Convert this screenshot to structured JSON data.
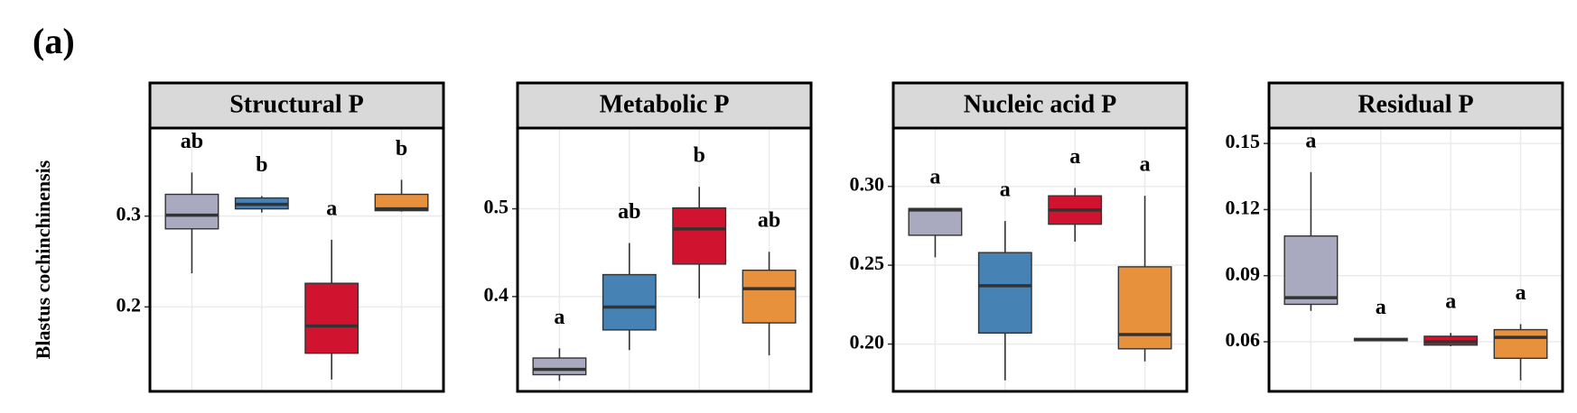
{
  "panel_label": "(a)",
  "y_label": "Blastus cochinchinensis",
  "chart_data": [
    {
      "type": "box",
      "title": "Structural P",
      "categories": [
        null,
        null,
        null,
        null
      ],
      "colors": [
        "#a9aabf",
        "#4682b4",
        "#d0142f",
        "#e8913d"
      ],
      "boxes": [
        {
          "low": 0.237,
          "q1": 0.286,
          "median": 0.301,
          "q3": 0.324,
          "high": 0.348
        },
        {
          "low": 0.304,
          "q1": 0.308,
          "median": 0.313,
          "q3": 0.32,
          "high": 0.322
        },
        {
          "low": 0.12,
          "q1": 0.149,
          "median": 0.179,
          "q3": 0.226,
          "high": 0.274
        },
        {
          "low": 0.305,
          "q1": 0.306,
          "median": 0.308,
          "q3": 0.324,
          "high": 0.34
        }
      ],
      "annotations": [
        "ab",
        "b",
        "a",
        "b"
      ],
      "ylim": [
        0.107,
        0.397
      ],
      "yticks": [
        0.2,
        0.3
      ],
      "grid": true
    },
    {
      "type": "box",
      "title": "Metabolic P",
      "categories": [
        null,
        null,
        null,
        null
      ],
      "colors": [
        "#a9aabf",
        "#4682b4",
        "#d0142f",
        "#e8913d"
      ],
      "boxes": [
        {
          "low": 0.304,
          "q1": 0.311,
          "median": 0.317,
          "q3": 0.33,
          "high": 0.341
        },
        {
          "low": 0.339,
          "q1": 0.362,
          "median": 0.388,
          "q3": 0.425,
          "high": 0.461
        },
        {
          "low": 0.398,
          "q1": 0.437,
          "median": 0.477,
          "q3": 0.501,
          "high": 0.525
        },
        {
          "low": 0.333,
          "q1": 0.37,
          "median": 0.409,
          "q3": 0.43,
          "high": 0.451
        }
      ],
      "annotations": [
        "a",
        "ab",
        "b",
        "ab"
      ],
      "ylim": [
        0.292,
        0.592
      ],
      "yticks": [
        0.4,
        0.5
      ],
      "grid": true
    },
    {
      "type": "box",
      "title": "Nucleic acid P",
      "categories": [
        null,
        null,
        null,
        null
      ],
      "colors": [
        "#a9aabf",
        "#4682b4",
        "#d0142f",
        "#e8913d"
      ],
      "boxes": [
        {
          "low": 0.255,
          "q1": 0.269,
          "median": 0.285,
          "q3": 0.286,
          "high": 0.286
        },
        {
          "low": 0.177,
          "q1": 0.207,
          "median": 0.237,
          "q3": 0.258,
          "high": 0.278
        },
        {
          "low": 0.265,
          "q1": 0.276,
          "median": 0.285,
          "q3": 0.294,
          "high": 0.299
        },
        {
          "low": 0.189,
          "q1": 0.197,
          "median": 0.206,
          "q3": 0.249,
          "high": 0.294
        }
      ],
      "annotations": [
        "a",
        "a",
        "a",
        "a"
      ],
      "ylim": [
        0.17,
        0.337
      ],
      "yticks": [
        {
          "value": 0.2,
          "label": "0.20"
        },
        0.25,
        {
          "value": 0.3,
          "label": "0.30"
        }
      ],
      "grid": true
    },
    {
      "type": "box",
      "title": "Residual P",
      "categories": [
        null,
        null,
        null,
        null
      ],
      "colors": [
        "#a9aabf",
        "#4682b4",
        "#d0142f",
        "#e8913d"
      ],
      "boxes": [
        {
          "low": 0.074,
          "q1": 0.077,
          "median": 0.08,
          "q3": 0.108,
          "high": 0.137
        },
        {
          "low": 0.0605,
          "q1": 0.0605,
          "median": 0.061,
          "q3": 0.0615,
          "high": 0.0615
        },
        {
          "low": 0.058,
          "q1": 0.0585,
          "median": 0.06,
          "q3": 0.0625,
          "high": 0.064
        },
        {
          "low": 0.0425,
          "q1": 0.0525,
          "median": 0.062,
          "q3": 0.0655,
          "high": 0.068
        }
      ],
      "annotations": [
        "a",
        "a",
        "a",
        "a"
      ],
      "ylim": [
        0.0375,
        0.157
      ],
      "yticks": [
        0.06,
        0.09,
        0.12,
        0.15
      ],
      "grid": true
    }
  ]
}
